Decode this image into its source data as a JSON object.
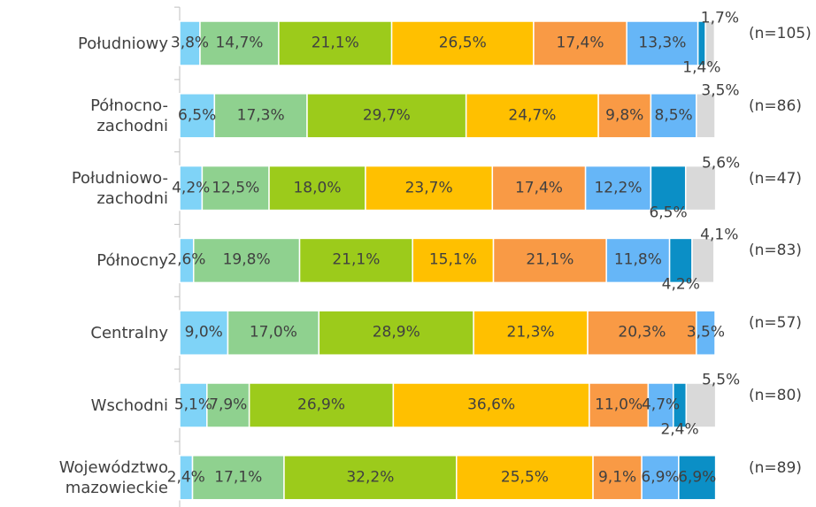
{
  "chart_data": {
    "type": "stacked_bar_horizontal",
    "categories": [
      "Południowy",
      "Północno-\nzachodni",
      "Południowo-\nzachodni",
      "Północny",
      "Centralny",
      "Wschodni",
      "Województwo\nmazowieckie"
    ],
    "sample_labels": [
      "(n=105)",
      "(n=86)",
      "(n=47)",
      "(n=83)",
      "(n=57)",
      "(n=80)",
      "(n=89)"
    ],
    "xlim": [
      0,
      100
    ],
    "series": [
      {
        "color": "#7fd3f7",
        "values": [
          3.8,
          6.5,
          4.2,
          2.6,
          9.0,
          5.1,
          2.4
        ],
        "value_labels": [
          "3,8%",
          "6,5%",
          "4,2%",
          "2,6%",
          "9,0%",
          "5,1%",
          "2,4%"
        ]
      },
      {
        "color": "#8fd18f",
        "values": [
          14.7,
          17.3,
          12.5,
          19.8,
          17.0,
          7.9,
          17.1
        ],
        "value_labels": [
          "14,7%",
          "17,3%",
          "12,5%",
          "19,8%",
          "17,0%",
          "7,9%",
          "17,1%"
        ]
      },
      {
        "color": "#9ccb1b",
        "values": [
          21.1,
          29.7,
          18.0,
          21.1,
          28.9,
          26.9,
          32.2
        ],
        "value_labels": [
          "21,1%",
          "29,7%",
          "18,0%",
          "21,1%",
          "28,9%",
          "26,9%",
          "32,2%"
        ]
      },
      {
        "color": "#ffc000",
        "values": [
          26.5,
          24.7,
          23.7,
          15.1,
          21.3,
          36.6,
          25.5
        ],
        "value_labels": [
          "26,5%",
          "24,7%",
          "23,7%",
          "15,1%",
          "21,3%",
          "36,6%",
          "25,5%"
        ]
      },
      {
        "color": "#f99a45",
        "values": [
          17.4,
          9.8,
          17.4,
          21.1,
          20.3,
          11.0,
          9.1
        ],
        "value_labels": [
          "17,4%",
          "9,8%",
          "17,4%",
          "21,1%",
          "20,3%",
          "11,0%",
          "9,1%"
        ]
      },
      {
        "color": "#66b6f7",
        "values": [
          13.3,
          8.5,
          12.2,
          11.8,
          3.5,
          4.7,
          6.9
        ],
        "value_labels": [
          "13,3%",
          "8,5%",
          "12,2%",
          "11,8%",
          "3,5%",
          "4,7%",
          "6,9%"
        ]
      },
      {
        "color": "#0b8fc6",
        "values": [
          1.4,
          null,
          6.5,
          4.2,
          null,
          2.4,
          6.9
        ],
        "value_labels": [
          "1,4%",
          null,
          "6,5%",
          "4,2%",
          null,
          "2,4%",
          "6,9%"
        ]
      },
      {
        "color": "#d9d9d9",
        "values": [
          1.7,
          3.5,
          5.6,
          4.1,
          null,
          5.5,
          null
        ],
        "value_labels": [
          "1,7%",
          "3,5%",
          "5,6%",
          "4,1%",
          null,
          "5,5%",
          null
        ]
      }
    ]
  }
}
